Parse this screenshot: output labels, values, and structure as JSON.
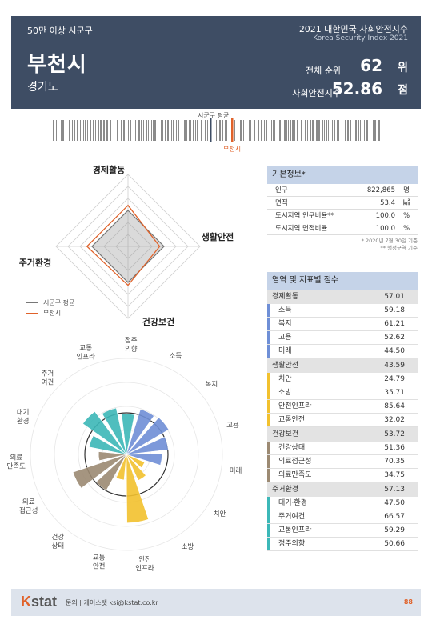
{
  "header": {
    "category": "50만 이상 시군구",
    "city": "부천시",
    "province": "경기도",
    "title": "2021 대한민국 사회안전지수",
    "subtitle": "Korea Security Index 2021",
    "rank_label": "전체 순위",
    "rank_value": "62",
    "rank_unit": "위",
    "index_label": "사회안전지수",
    "index_value": "52.86",
    "index_unit": "점"
  },
  "barcode": {
    "avg_label": "시군구 평균",
    "city_label": "부천시"
  },
  "radar": {
    "axes": [
      "경제활동",
      "생활안전",
      "건강보건",
      "주거환경"
    ],
    "avg": [
      0.5,
      0.5,
      0.5,
      0.5
    ],
    "city": [
      0.57,
      0.44,
      0.54,
      0.57
    ],
    "legend_avg": "시군구 평균",
    "legend_city": "부천시",
    "colors": {
      "avg": "#777777",
      "city": "#e0622a"
    }
  },
  "info": {
    "title": "기본정보*",
    "rows": [
      {
        "label": "인구",
        "value": "822,865",
        "unit": "명"
      },
      {
        "label": "면적",
        "value": "53.4",
        "unit": "㎢"
      },
      {
        "label": "도시지역 인구비율**",
        "value": "100.0",
        "unit": "%"
      },
      {
        "label": "도시지역 면적비율",
        "value": "100.0",
        "unit": "%"
      }
    ],
    "note1": "* 2020년 7월 30일 기준",
    "note2": "** 행정구역 기준"
  },
  "score": {
    "title": "영역 및 지표별 점수",
    "sections": [
      {
        "label": "경제활동",
        "value": "57.01",
        "color": "#6f8fd6",
        "items": [
          {
            "label": "소득",
            "value": "59.18"
          },
          {
            "label": "복지",
            "value": "61.21"
          },
          {
            "label": "고용",
            "value": "52.62"
          },
          {
            "label": "미래",
            "value": "44.50"
          }
        ]
      },
      {
        "label": "생활안전",
        "value": "43.59",
        "color": "#f2c12e",
        "items": [
          {
            "label": "치안",
            "value": "24.79"
          },
          {
            "label": "소방",
            "value": "35.71"
          },
          {
            "label": "안전인프라",
            "value": "85.64"
          },
          {
            "label": "교통안전",
            "value": "32.02"
          }
        ]
      },
      {
        "label": "건강보건",
        "value": "53.72",
        "color": "#9c8a73",
        "items": [
          {
            "label": "건강상태",
            "value": "51.36"
          },
          {
            "label": "의료접근성",
            "value": "70.35"
          },
          {
            "label": "의료만족도",
            "value": "34.75"
          }
        ]
      },
      {
        "label": "주거환경",
        "value": "57.13",
        "color": "#3cb8b8",
        "items": [
          {
            "label": "대기·환경",
            "value": "47.50"
          },
          {
            "label": "주거여건",
            "value": "66.57"
          },
          {
            "label": "교통인프라",
            "value": "59.29"
          },
          {
            "label": "정주의향",
            "value": "50.66"
          }
        ]
      }
    ]
  },
  "chart_data": {
    "type": "bar",
    "categories": [
      "소득",
      "복지",
      "고용",
      "미래",
      "치안",
      "소방",
      "안전\n인프라",
      "교통\n안전",
      "건강\n상태",
      "의료\n접근성",
      "의료\n만족도",
      "대기\n환경",
      "주거\n여건",
      "교통\n인프라",
      "정주\n의향"
    ],
    "values": [
      59.18,
      61.21,
      52.62,
      44.5,
      24.79,
      35.71,
      85.64,
      32.02,
      51.36,
      70.35,
      34.75,
      47.5,
      66.57,
      59.29,
      50.66
    ],
    "colors": [
      "#6f8fd6",
      "#6f8fd6",
      "#6f8fd6",
      "#6f8fd6",
      "#f2c12e",
      "#f2c12e",
      "#f2c12e",
      "#f2c12e",
      "#9c8a73",
      "#9c8a73",
      "#9c8a73",
      "#3cb8b8",
      "#3cb8b8",
      "#3cb8b8",
      "#3cb8b8"
    ],
    "ylim": [
      0,
      100
    ]
  },
  "footer": {
    "logo_k": "K",
    "logo_rest": "stat",
    "text": "문의 | 케이스탯 ksi@kstat.co.kr",
    "page": "88"
  }
}
